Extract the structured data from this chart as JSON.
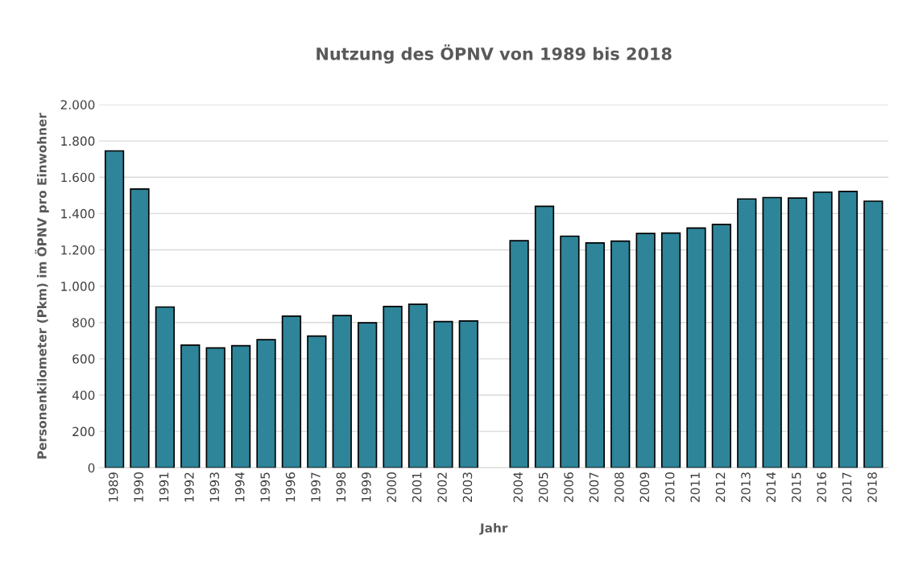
{
  "chart_data": {
    "type": "bar",
    "title": "Nutzung des ÖPNV von 1989 bis 2018",
    "xlabel": "Jahr",
    "ylabel": "Personenkilometer (Pkm) im ÖPNV pro Einwohner",
    "categories": [
      "1989",
      "1990",
      "1991",
      "1992",
      "1993",
      "1994",
      "1995",
      "1996",
      "1997",
      "1998",
      "1999",
      "2000",
      "2001",
      "2002",
      "2003",
      null,
      "2004",
      "2005",
      "2006",
      "2007",
      "2008",
      "2009",
      "2010",
      "2011",
      "2012",
      "2013",
      "2014",
      "2015",
      "2016",
      "2017",
      "2018"
    ],
    "values": [
      1745,
      1535,
      885,
      675,
      660,
      672,
      705,
      835,
      725,
      838,
      798,
      888,
      900,
      805,
      808,
      null,
      1250,
      1440,
      1275,
      1238,
      1248,
      1290,
      1292,
      1320,
      1340,
      1480,
      1488,
      1485,
      1518,
      1522,
      1468
    ],
    "color": "#2e8499",
    "ylim": [
      0,
      2000
    ],
    "yticks": [
      0,
      200,
      400,
      600,
      800,
      {
        "value": 1000,
        "label": "1.000"
      },
      {
        "value": 1200,
        "label": "1.200"
      },
      {
        "value": 1400,
        "label": "1.400"
      },
      {
        "value": 1600,
        "label": "1.600"
      },
      {
        "value": 1800,
        "label": "1.800"
      },
      {
        "value": 2000,
        "label": "2.000"
      }
    ],
    "grid": "y"
  }
}
